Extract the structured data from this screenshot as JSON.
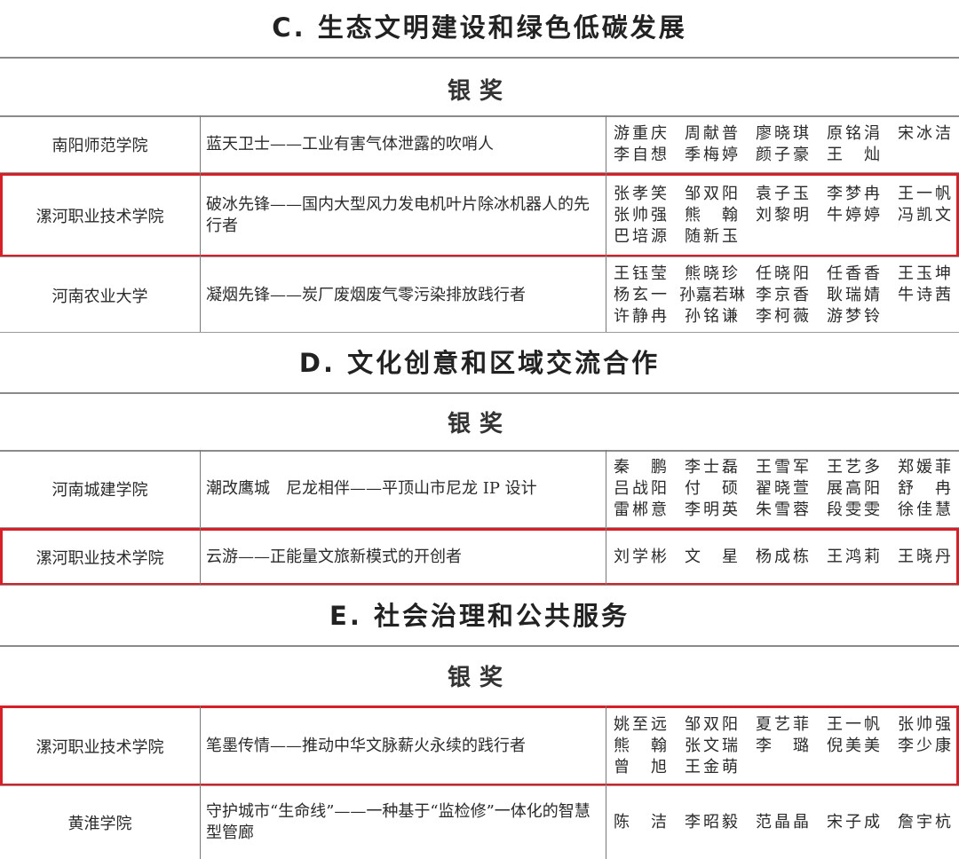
{
  "sections": [
    {
      "title": "C. 生态文明建设和绿色低碳发展",
      "award": "银奖",
      "rows": [
        {
          "school": "南阳师范学院",
          "project": "蓝天卫士——工业有害气体泄露的吹哨人",
          "names": [
            "游重庆",
            "周献普",
            "廖晓琪",
            "原铭涓",
            "宋冰洁",
            "李自想",
            "季梅婷",
            "颜子豪",
            "王　灿"
          ],
          "highlight": false
        },
        {
          "school": "漯河职业技术学院",
          "project": "破冰先锋——国内大型风力发电机叶片除冰机器人的先行者",
          "names": [
            "张孝笑",
            "邹双阳",
            "袁子玉",
            "李梦冉",
            "王一帆",
            "张帅强",
            "熊　翰",
            "刘黎明",
            "牛婷婷",
            "冯凯文",
            "巴培源",
            "随新玉"
          ],
          "highlight": true
        },
        {
          "school": "河南农业大学",
          "project": "凝烟先锋——炭厂废烟废气零污染排放践行者",
          "names": [
            "王钰莹",
            "熊晓珍",
            "任晓阳",
            "任香香",
            "王玉坤",
            "杨玄一",
            "孙嘉若琳",
            "李京香",
            "耿瑞婧",
            "牛诗茜",
            "许静冉",
            "孙铭谦",
            "李柯薇",
            "游梦铃"
          ],
          "highlight": false
        }
      ]
    },
    {
      "title": "D. 文化创意和区域交流合作",
      "award": "银奖",
      "rows": [
        {
          "school": "河南城建学院",
          "project": "潮改鹰城　尼龙相伴——平顶山市尼龙 IP 设计",
          "names": [
            "秦　鹏",
            "李士磊",
            "王雪军",
            "王艺多",
            "郑媛菲",
            "吕战阳",
            "付　硕",
            "翟晓萱",
            "展高阳",
            "舒　冉",
            "雷郴意",
            "李明英",
            "朱雪蓉",
            "段雯雯",
            "徐佳慧"
          ],
          "highlight": false
        },
        {
          "school": "漯河职业技术学院",
          "project": "云游——正能量文旅新模式的开创者",
          "names": [
            "刘学彬",
            "文　星",
            "杨成栋",
            "王鸿莉",
            "王晓丹"
          ],
          "highlight": true
        }
      ]
    },
    {
      "title": "E. 社会治理和公共服务",
      "award": "银奖",
      "rows": [
        {
          "school": "漯河职业技术学院",
          "project": "笔墨传情——推动中华文脉薪火永续的践行者",
          "names": [
            "姚至远",
            "邹双阳",
            "夏艺菲",
            "王一帆",
            "张帅强",
            "熊　翰",
            "张文瑞",
            "李　璐",
            "倪美美",
            "李少康",
            "曾　旭",
            "王金萌"
          ],
          "highlight": true
        },
        {
          "school": "黄淮学院",
          "project": "守护城市“生命线”——一种基于“监检修”一体化的智慧型管廊",
          "names": [
            "陈　洁",
            "李昭毅",
            "范晶晶",
            "宋子成",
            "詹宇杭"
          ],
          "highlight": false
        }
      ]
    }
  ],
  "colors": {
    "highlight_border": "#d61f26",
    "rule": "#8a8a8a"
  }
}
